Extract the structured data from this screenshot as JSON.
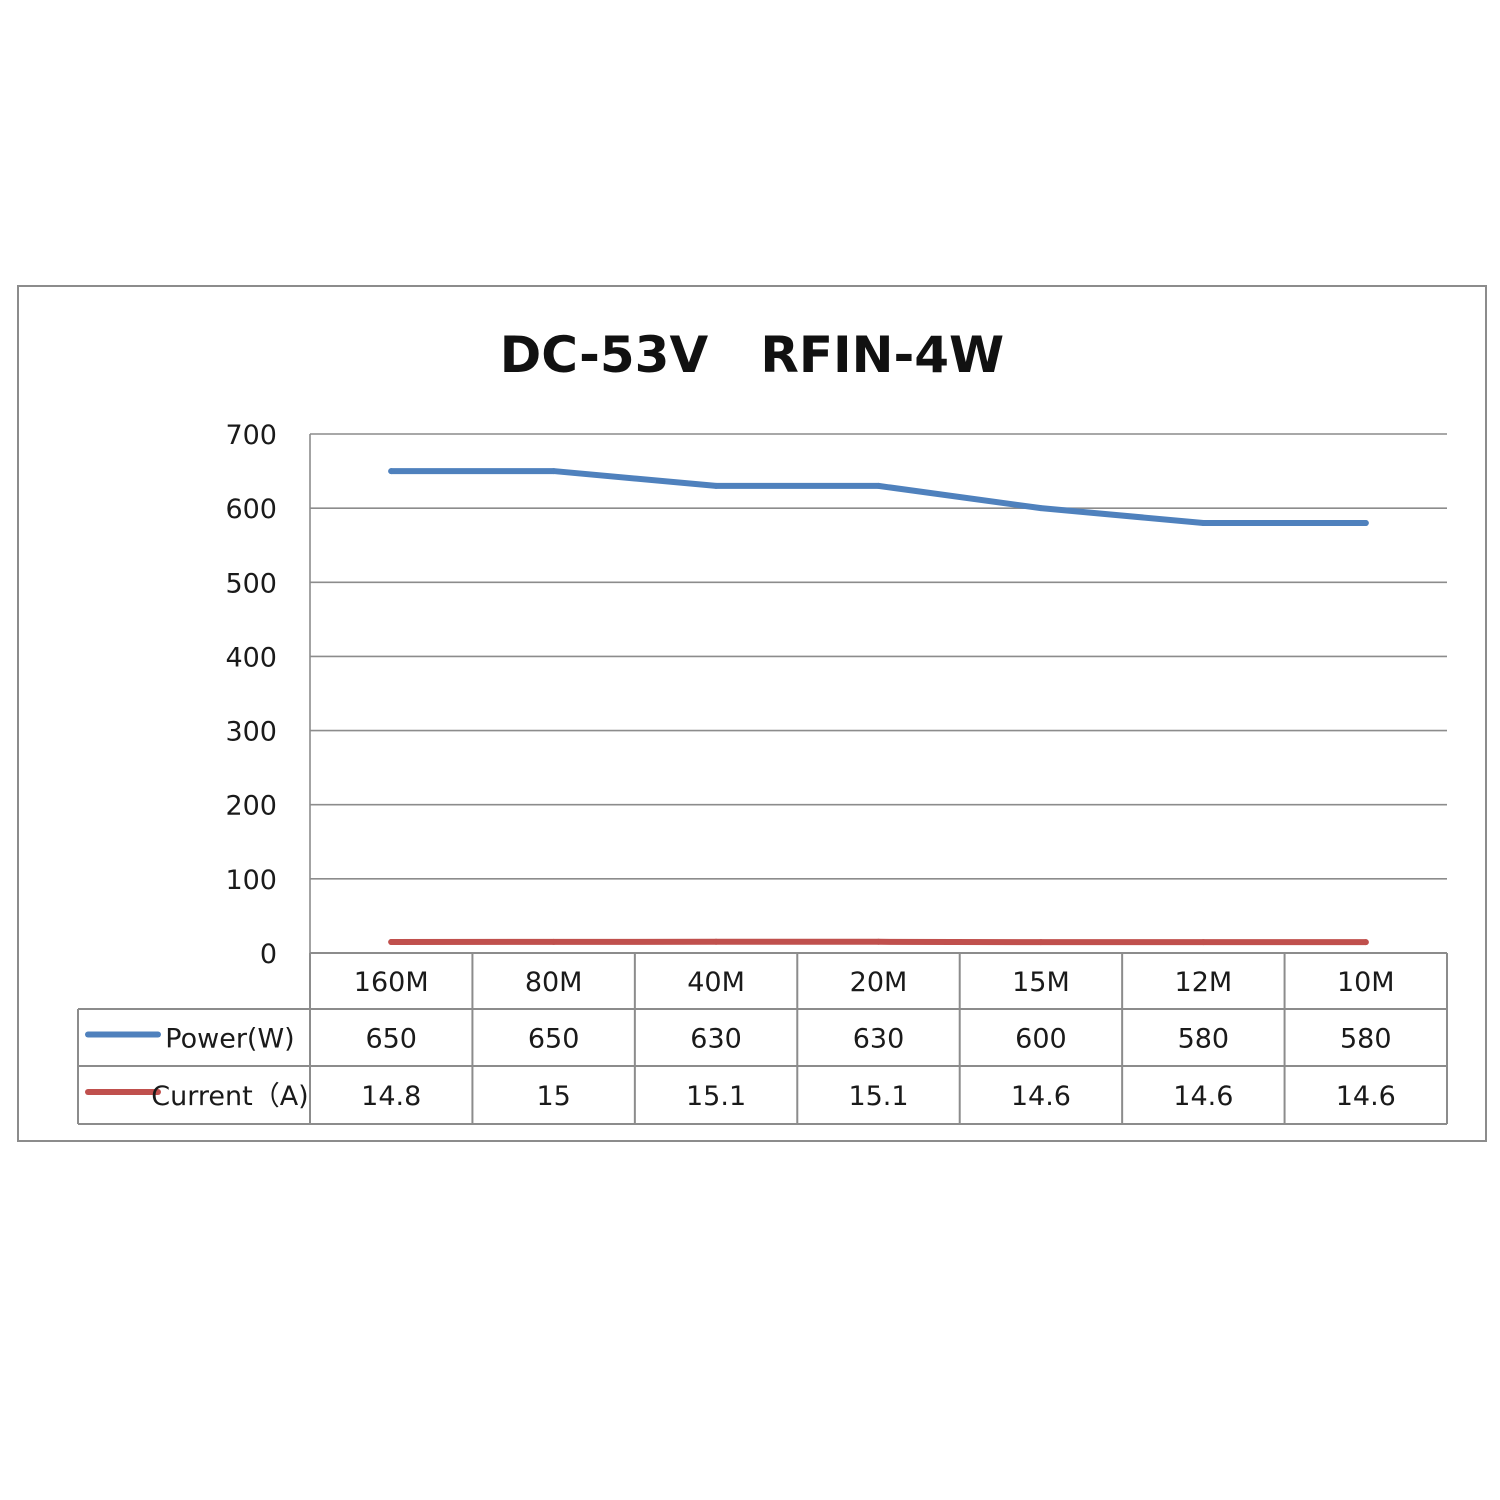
{
  "chart_data": {
    "type": "line",
    "title": "DC-53V   RFIN-4W",
    "categories": [
      "160M",
      "80M",
      "40M",
      "20M",
      "15M",
      "12M",
      "10M"
    ],
    "ylim": [
      0,
      700
    ],
    "yticks": [
      "0",
      "100",
      "200",
      "300",
      "400",
      "500",
      "600",
      "700"
    ],
    "grid": true,
    "legend": "data-table",
    "series": [
      {
        "name": "Power(W)",
        "color": "#4f81bd",
        "values": [
          650,
          650,
          630,
          630,
          600,
          580,
          580
        ],
        "labels": [
          "650",
          "650",
          "630",
          "630",
          "600",
          "580",
          "580"
        ]
      },
      {
        "name": "Current（A)",
        "color": "#c0504d",
        "values": [
          14.8,
          15,
          15.1,
          15.1,
          14.6,
          14.6,
          14.6
        ],
        "labels": [
          "14.8",
          "15",
          "15.1",
          "15.1",
          "14.6",
          "14.6",
          "14.6"
        ]
      }
    ]
  }
}
